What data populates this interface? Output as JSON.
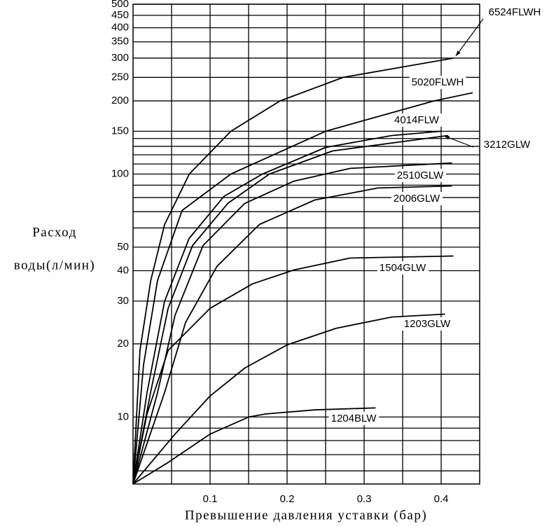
{
  "chart_data": {
    "type": "line",
    "xlabel": "Превышение давления уставки (бар)",
    "ylabel": [
      "Расход",
      "воды(л/мин)"
    ],
    "xlim": [
      0,
      0.45
    ],
    "xticks": [
      0.1,
      0.2,
      0.3,
      0.4
    ],
    "x_minor_grid": [
      0.05,
      0.15,
      0.25,
      0.35
    ],
    "ylim": [
      5.3,
      500
    ],
    "yscale": "log",
    "yticks": [
      10,
      20,
      30,
      40,
      50,
      100,
      150,
      200,
      250,
      300,
      350,
      400,
      450,
      500
    ],
    "y_minor_grid": [
      6,
      7,
      8,
      9,
      15,
      60,
      70,
      80,
      90,
      110,
      120,
      130,
      140
    ],
    "grid": true,
    "series": [
      {
        "name": "6524FLWH",
        "color": "#000000",
        "x": [
          0,
          0.009,
          0.023,
          0.041,
          0.073,
          0.127,
          0.191,
          0.273,
          0.416
        ],
        "values": [
          5.3,
          18.8,
          36.5,
          62,
          100,
          150,
          200,
          250,
          300
        ]
      },
      {
        "name": "5020FLWH",
        "color": "#000000",
        "x": [
          0,
          0.0136,
          0.0318,
          0.0636,
          0.127,
          0.25,
          0.391,
          0.441
        ],
        "values": [
          5.3,
          16.4,
          36.5,
          70.8,
          100,
          150,
          200,
          216
        ]
      },
      {
        "name": "4014FLW",
        "color": "#000000",
        "x": [
          0,
          0.0182,
          0.0409,
          0.0727,
          0.118,
          0.168,
          0.25,
          0.336,
          0.4
        ],
        "values": [
          5.3,
          12.6,
          29.9,
          54.3,
          80.9,
          100,
          128.7,
          144,
          150
        ]
      },
      {
        "name": "3212GLW",
        "color": "#000000",
        "x": [
          0,
          0.0227,
          0.0455,
          0.0773,
          0.123,
          0.177,
          0.259,
          0.409
        ],
        "values": [
          5.3,
          12.6,
          28,
          50.8,
          75.7,
          100,
          124.5,
          144
        ]
      },
      {
        "name": "2510GLW",
        "color": "#000000",
        "x": [
          0,
          0.0318,
          0.0545,
          0.0909,
          0.145,
          0.209,
          0.282,
          0.414
        ],
        "values": [
          5.3,
          12.6,
          26.2,
          50.8,
          75.7,
          93.5,
          105.5,
          111
        ]
      },
      {
        "name": "2006GLW",
        "color": "#000000",
        "x": [
          0,
          0.0409,
          0.0682,
          0.109,
          0.164,
          0.236,
          0.318,
          0.414
        ],
        "values": [
          5.3,
          12.6,
          24.5,
          41.7,
          62,
          78.2,
          87.6,
          89.3
        ]
      },
      {
        "name": "1504GLW",
        "color": "#000000",
        "x": [
          0,
          0.0182,
          0.0455,
          0.1,
          0.155,
          0.209,
          0.282,
          0.416
        ],
        "values": [
          5.3,
          10.3,
          18.8,
          28,
          35.3,
          40.3,
          45.1,
          46
        ]
      },
      {
        "name": "1203GLW",
        "color": "#000000",
        "x": [
          0,
          0.0545,
          0.1,
          0.145,
          0.2,
          0.264,
          0.336,
          0.405
        ],
        "values": [
          5.3,
          8.5,
          12.2,
          15.9,
          19.8,
          23.2,
          25.8,
          26.5
        ]
      },
      {
        "name": "1204BLW",
        "color": "#000000",
        "x": [
          0,
          0.0455,
          0.1,
          0.15,
          0.173,
          0.236,
          0.315
        ],
        "values": [
          5.3,
          6.5,
          8.5,
          10,
          10.3,
          10.7,
          10.9
        ]
      }
    ]
  }
}
